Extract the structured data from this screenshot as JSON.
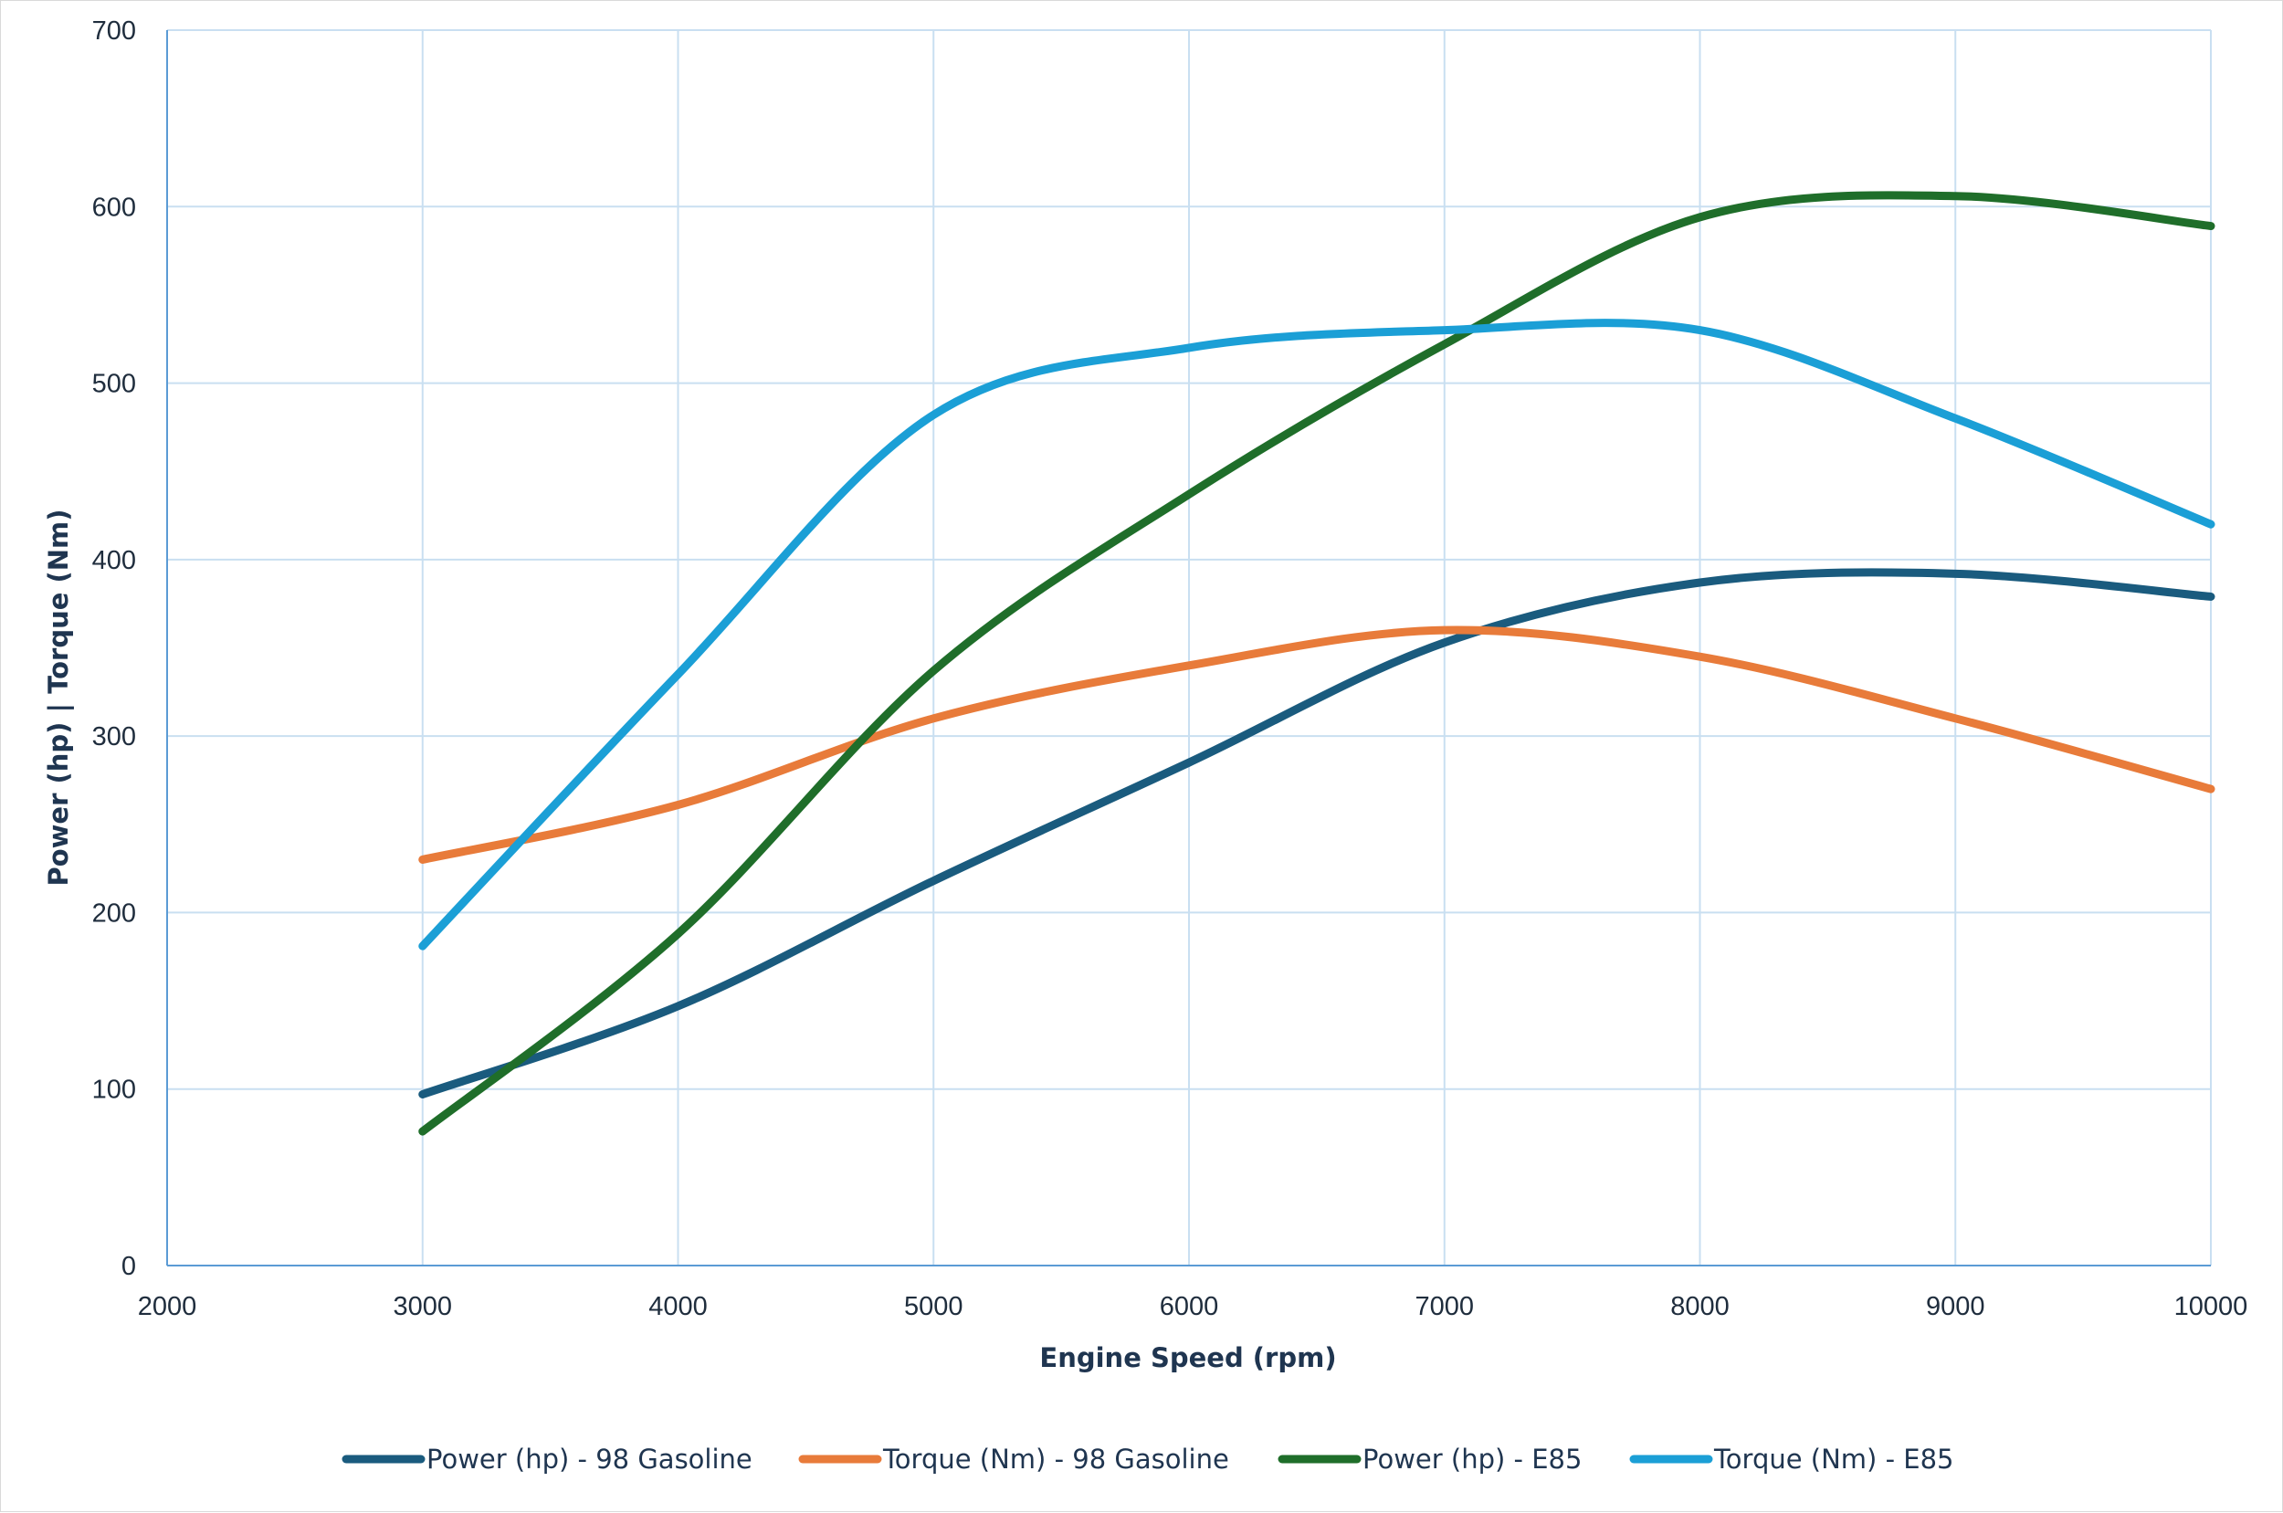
{
  "chart_data": {
    "type": "line",
    "xlabel": "Engine Speed (rpm)",
    "ylabel": "Power (hp) | Torque (Nm)",
    "xlim": [
      2000,
      10000
    ],
    "ylim": [
      0,
      700
    ],
    "x_ticks": [
      "2000",
      "3000",
      "4000",
      "5000",
      "6000",
      "7000",
      "8000",
      "9000",
      "10000"
    ],
    "y_ticks": [
      "0",
      "100",
      "200",
      "300",
      "400",
      "500",
      "600",
      "700"
    ],
    "x": [
      3000,
      4000,
      5000,
      6000,
      7000,
      8000,
      9000,
      10000
    ],
    "grid": true,
    "legend_position": "bottom",
    "series": [
      {
        "name": "Power (hp) - 98 Gasoline",
        "color": "#1a5b7e",
        "values": [
          97,
          147,
          218,
          285,
          353,
          387,
          392,
          379
        ]
      },
      {
        "name": "Torque (Nm) - 98 Gasoline",
        "color": "#e87b3a",
        "values": [
          230,
          261,
          310,
          340,
          360,
          345,
          310,
          270
        ]
      },
      {
        "name": "Power (hp) - E85",
        "color": "#1f6e2a",
        "values": [
          76,
          188,
          337,
          437,
          522,
          594,
          606,
          589
        ]
      },
      {
        "name": "Torque (Nm) - E85",
        "color": "#1b9fd6",
        "values": [
          181,
          335,
          482,
          520,
          530,
          530,
          480,
          420
        ]
      }
    ]
  }
}
